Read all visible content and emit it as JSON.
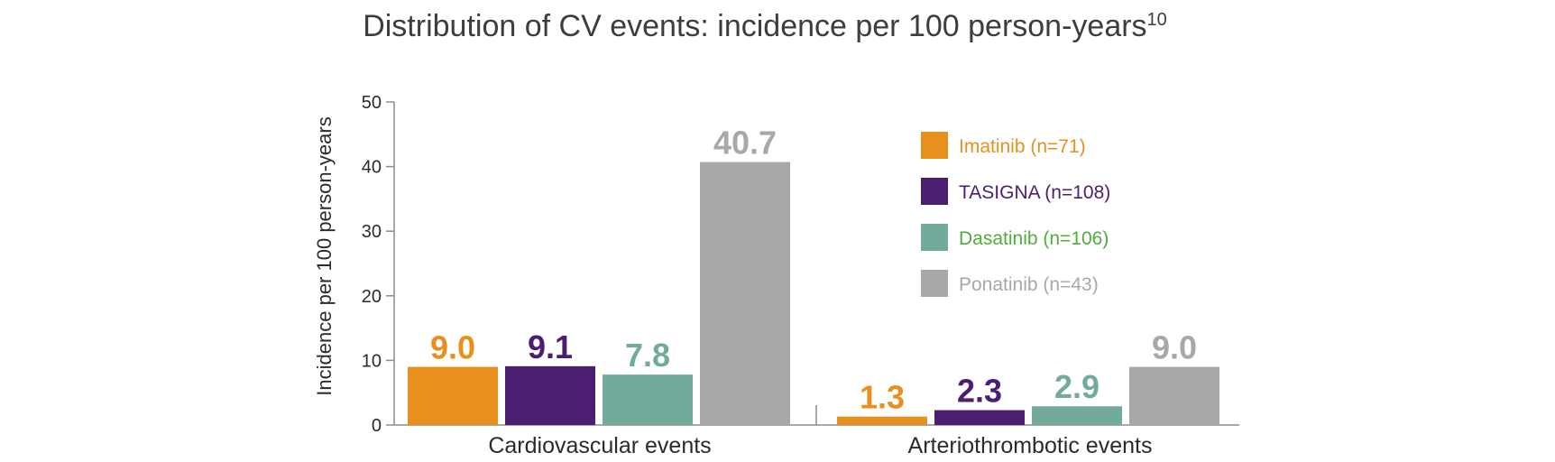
{
  "chart_data": {
    "type": "bar",
    "title": "Distribution of CV events: incidence per 100 person-years",
    "title_superscript": "10",
    "xlabel": "",
    "ylabel": "Incidence per 100 person-years",
    "ylim": [
      0,
      50
    ],
    "yticks": [
      "0",
      "10",
      "20",
      "30",
      "40",
      "50"
    ],
    "ytick_values": [
      0,
      10,
      20,
      30,
      40,
      50
    ],
    "grid": false,
    "legend_position": "top-right",
    "categories": [
      "Cardiovascular events",
      "Arteriothrombotic events"
    ],
    "series": [
      {
        "name": "Imatinib (n=71)",
        "color": "#e8901e",
        "label_color": "#e8901e",
        "values": [
          9.0,
          1.3
        ],
        "labels": [
          "9.0",
          "1.3"
        ]
      },
      {
        "name": "TASIGNA (n=108)",
        "color": "#4b1f6f",
        "label_color": "#4b1f6f",
        "values": [
          9.1,
          2.3
        ],
        "labels": [
          "9.1",
          "2.3"
        ]
      },
      {
        "name": "Dasatinib (n=106)",
        "color": "#72ab9c",
        "label_color": "#72ab9c",
        "legend_text_color": "#4fad3c",
        "values": [
          7.8,
          2.9
        ],
        "labels": [
          "7.8",
          "2.9"
        ]
      },
      {
        "name": "Ponatinib (n=43)",
        "color": "#a7a8aa",
        "label_color": "#a7a8aa",
        "values": [
          40.7,
          9.0
        ],
        "labels": [
          "40.7",
          "9.0"
        ]
      }
    ]
  }
}
